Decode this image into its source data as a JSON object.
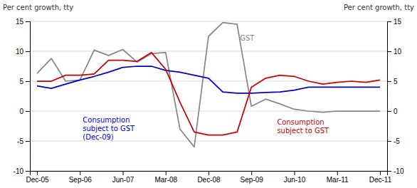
{
  "chart_data": {
    "type": "line",
    "y_label": "Per cent growth, tty",
    "y2_label": "Per cent growth, tty",
    "categories": [
      "Dec-05",
      null,
      null,
      "Sep-06",
      null,
      null,
      "Jun-07",
      null,
      null,
      "Mar-08",
      null,
      null,
      "Dec-08",
      null,
      null,
      "Sep-09",
      null,
      null,
      "Jun-10",
      null,
      null,
      "Mar-11",
      null,
      null,
      "Dec-11"
    ],
    "series": [
      {
        "name": "GST",
        "color": "#888888",
        "values": [
          6.3,
          8.8,
          5.0,
          5.2,
          10.2,
          9.3,
          10.3,
          8.2,
          9.6,
          9.8,
          -3.0,
          -6.0,
          12.5,
          14.8,
          14.5,
          0.8,
          2.0,
          1.2,
          0.3,
          0.0,
          -0.2,
          0.0,
          0.0,
          0.0,
          0.0
        ]
      },
      {
        "name": "Consumption\nsubject to GST\n(Dec-09)",
        "color": "#0000CC",
        "values": [
          4.2,
          3.8,
          4.5,
          5.2,
          5.8,
          6.5,
          7.3,
          7.5,
          7.5,
          6.8,
          6.5,
          6.0,
          5.5,
          3.2,
          3.0,
          3.0,
          3.1,
          3.2,
          3.5,
          4.0,
          4.0,
          4.0,
          4.0,
          4.0,
          4.0
        ]
      },
      {
        "name": "Consumption\nsubject to GST",
        "color": "#CC0000",
        "values": [
          5.0,
          5.0,
          6.0,
          6.0,
          6.2,
          8.5,
          8.5,
          8.3,
          9.8,
          7.0,
          1.5,
          -3.5,
          -4.0,
          -4.0,
          -3.5,
          4.0,
          5.5,
          6.0,
          5.8,
          5.0,
          4.5,
          4.8,
          5.0,
          4.8,
          5.2
        ]
      }
    ],
    "ylim": [
      -10,
      15
    ],
    "yticks": [
      -10,
      -5,
      0,
      5,
      10,
      15
    ],
    "y2lim": [
      -10,
      15
    ],
    "y2ticks": [
      -10,
      -5,
      0,
      5,
      10,
      15
    ],
    "grid": true
  }
}
